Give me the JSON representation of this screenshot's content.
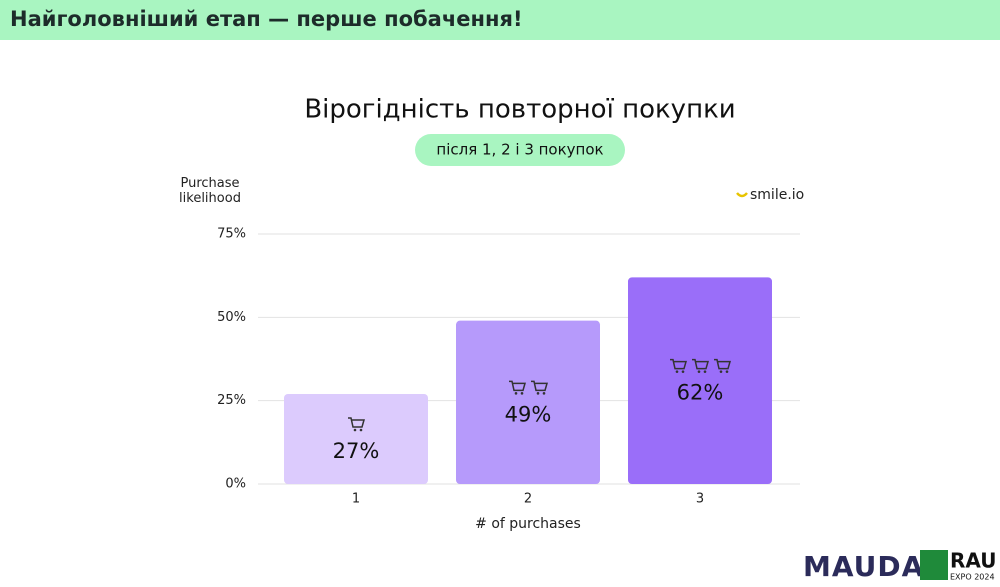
{
  "header": {
    "title": "Найголовніший етап — перше побачення!"
  },
  "chart_data": {
    "type": "bar",
    "title": "Вірогідність повторної покупки",
    "subtitle": "після 1, 2 і 3 покупок",
    "y_label": "Purchase likelihood",
    "x_label": "# of purchases",
    "source": "smile.io",
    "categories": [
      "1",
      "2",
      "3"
    ],
    "values": [
      27,
      49,
      62
    ],
    "value_labels": [
      "27%",
      "49%",
      "62%"
    ],
    "colors": [
      "#dccbfd",
      "#b69afb",
      "#9a6ef9"
    ],
    "ylim": [
      0,
      75
    ],
    "yticks": [
      {
        "value": 0,
        "label": "0%"
      },
      {
        "value": 25,
        "label": "25%"
      },
      {
        "value": 50,
        "label": "50%"
      },
      {
        "value": 75,
        "label": "75%"
      }
    ],
    "grid": true
  },
  "footer": {
    "logo1": "MAUDAU",
    "logo2": "RAU",
    "logo2_sub": "EXPO 2024"
  }
}
